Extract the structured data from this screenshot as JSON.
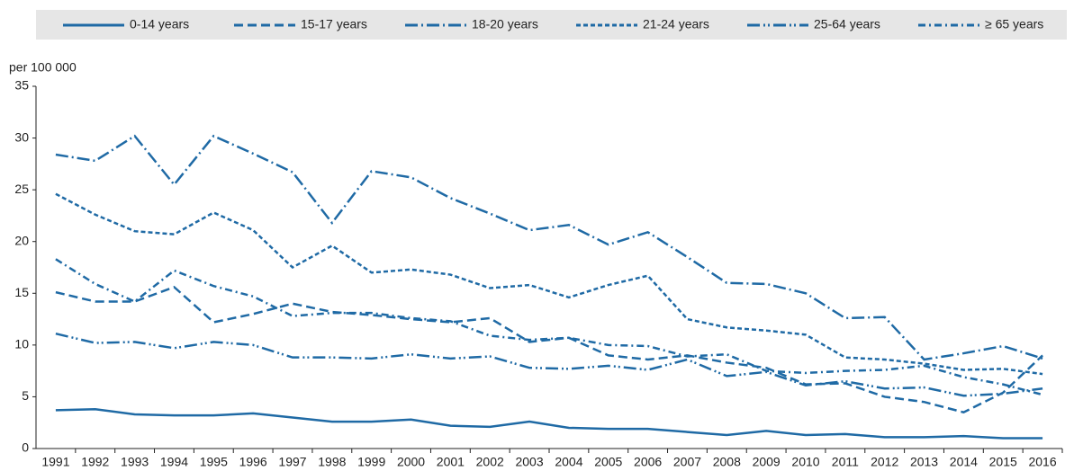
{
  "chart_data": {
    "type": "line",
    "y_label": "per 100 000",
    "categories": [
      "1991",
      "1992",
      "1993",
      "1994",
      "1995",
      "1996",
      "1997",
      "1998",
      "1999",
      "2000",
      "2001",
      "2002",
      "2003",
      "2004",
      "2005",
      "2006",
      "2007",
      "2008",
      "2009",
      "2010",
      "2011",
      "2012",
      "2013",
      "2014",
      "2015",
      "2016"
    ],
    "series": [
      {
        "name": "0-14 years",
        "color": "#1f6aa5",
        "dash": "solid",
        "values": [
          3.7,
          3.8,
          3.3,
          3.2,
          3.2,
          3.4,
          3.0,
          2.6,
          2.6,
          2.8,
          2.2,
          2.1,
          2.6,
          2.0,
          1.9,
          1.9,
          1.6,
          1.3,
          1.7,
          1.3,
          1.4,
          1.1,
          1.1,
          1.2,
          1.0,
          1.0
        ]
      },
      {
        "name": "15-17 years",
        "color": "#1f6aa5",
        "dash": "10 5",
        "values": [
          15.1,
          14.2,
          14.2,
          15.6,
          12.2,
          13.0,
          14.0,
          13.2,
          12.9,
          12.5,
          12.2,
          12.6,
          10.3,
          10.7,
          9.0,
          8.6,
          9.0,
          8.3,
          7.8,
          6.2,
          6.3,
          5.0,
          4.5,
          3.5,
          5.4,
          9.0
        ]
      },
      {
        "name": "18-20 years",
        "color": "#1f6aa5",
        "dash": "14 4 2 4",
        "values": [
          28.4,
          27.8,
          30.2,
          25.5,
          30.2,
          28.5,
          26.7,
          21.8,
          26.8,
          26.2,
          24.2,
          22.7,
          21.1,
          21.6,
          19.7,
          20.9,
          18.5,
          16.0,
          15.9,
          15.0,
          12.6,
          12.7,
          8.6,
          9.2,
          9.9,
          8.7
        ]
      },
      {
        "name": "21-24 years",
        "color": "#1f6aa5",
        "dash": "5 3",
        "values": [
          24.6,
          22.6,
          21.0,
          20.7,
          22.8,
          21.1,
          17.5,
          19.6,
          17.0,
          17.3,
          16.8,
          15.5,
          15.8,
          14.6,
          15.8,
          16.7,
          12.5,
          11.7,
          11.4,
          11.0,
          8.8,
          8.6,
          8.2,
          7.6,
          7.7,
          7.2
        ]
      },
      {
        "name": "25-64 years",
        "color": "#1f6aa5",
        "dash": "14 4 2 3 2 4",
        "values": [
          11.1,
          10.2,
          10.3,
          9.7,
          10.3,
          10.0,
          8.8,
          8.8,
          8.7,
          9.1,
          8.7,
          8.9,
          7.8,
          7.7,
          8.0,
          7.6,
          8.6,
          7.0,
          7.4,
          6.1,
          6.5,
          5.8,
          5.9,
          5.1,
          5.3,
          5.8
        ]
      },
      {
        "name": "≥ 65 years",
        "color": "#1f6aa5",
        "dash": "8 4 2 4",
        "values": [
          18.3,
          15.9,
          14.2,
          17.2,
          15.7,
          14.7,
          12.8,
          13.1,
          13.1,
          12.6,
          12.3,
          10.9,
          10.5,
          10.7,
          10.0,
          9.9,
          8.9,
          9.1,
          7.5,
          7.3,
          7.5,
          7.6,
          8.0,
          6.9,
          6.2,
          5.2
        ]
      }
    ],
    "ylim": [
      0,
      35
    ],
    "yticks": [
      0,
      5,
      10,
      15,
      20,
      25,
      30,
      35
    ],
    "grid": false
  }
}
